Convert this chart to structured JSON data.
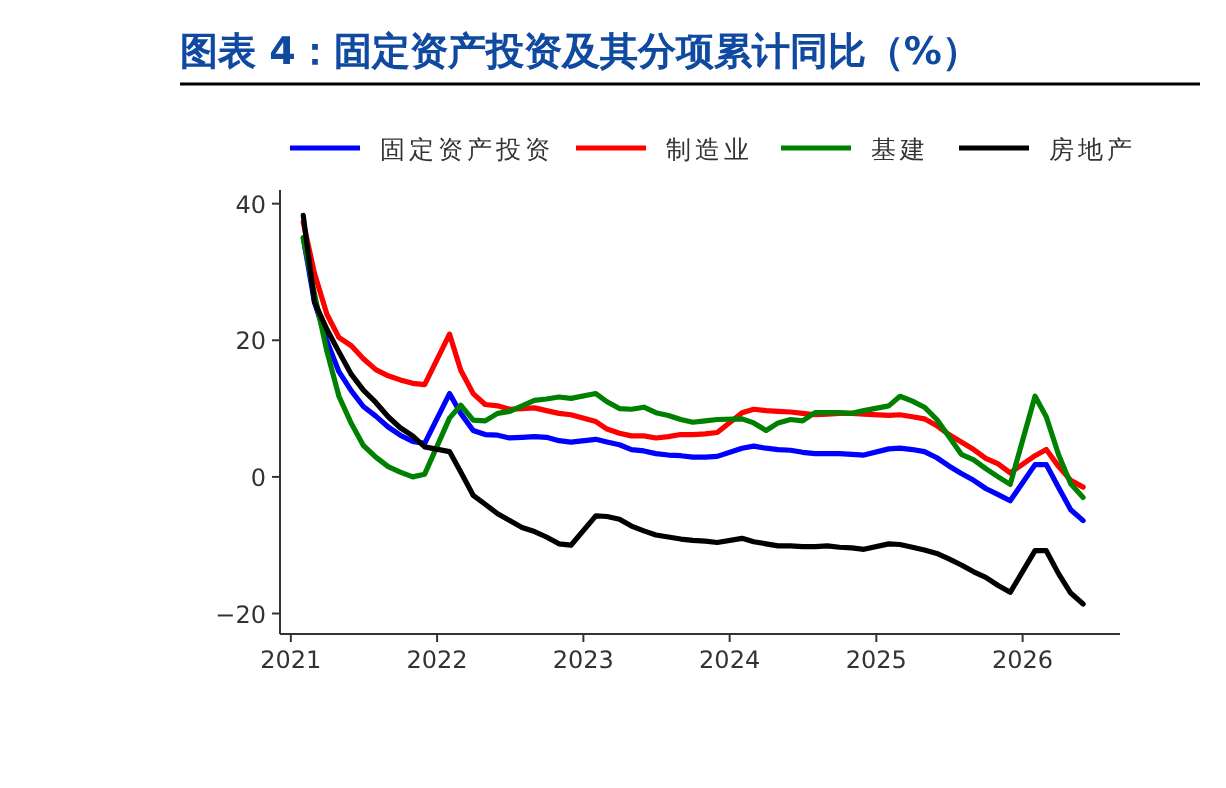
{
  "chart_data": {
    "type": "line",
    "title": "图表 4：固定资产投资及其分项累计同比（%）",
    "x": [
      "2021-02",
      "2021-03",
      "2021-04",
      "2021-05",
      "2021-06",
      "2021-07",
      "2021-08",
      "2021-09",
      "2021-10",
      "2021-11",
      "2021-12",
      "2022-02",
      "2022-03",
      "2022-04",
      "2022-05",
      "2022-06",
      "2022-07",
      "2022-08",
      "2022-09",
      "2022-10",
      "2022-11",
      "2022-12",
      "2023-02",
      "2023-03",
      "2023-04",
      "2023-05",
      "2023-06",
      "2023-07",
      "2023-08",
      "2023-09",
      "2023-10",
      "2023-11",
      "2023-12",
      "2024-02",
      "2024-03",
      "2024-04",
      "2024-05",
      "2024-06",
      "2024-07",
      "2024-08",
      "2024-09",
      "2024-10",
      "2024-11",
      "2024-12",
      "2025-02",
      "2025-03",
      "2025-04",
      "2025-05",
      "2025-06",
      "2025-07",
      "2025-08",
      "2025-09",
      "2025-10",
      "2025-11",
      "2025-12",
      "2026-02",
      "2026-03",
      "2026-04",
      "2026-05",
      "2026-06"
    ],
    "series": [
      {
        "name": "固定资产投资",
        "color": "#0000ff",
        "values": [
          35,
          25.6,
          19.9,
          15.4,
          12.6,
          10.3,
          8.9,
          7.3,
          6.1,
          5.2,
          4.9,
          12.2,
          9.3,
          6.8,
          6.2,
          6.1,
          5.7,
          5.8,
          5.9,
          5.8,
          5.3,
          5.1,
          5.5,
          5.1,
          4.7,
          4.0,
          3.8,
          3.4,
          3.2,
          3.1,
          2.9,
          2.9,
          3.0,
          4.2,
          4.5,
          4.2,
          4.0,
          3.9,
          3.6,
          3.4,
          3.4,
          3.4,
          3.3,
          3.2,
          4.1,
          4.2,
          4.0,
          3.7,
          2.8,
          1.6,
          0.5,
          -0.5,
          -1.7,
          -2.6,
          -3.5,
          1.8,
          1.8,
          -1.6,
          -4.8,
          -6.4
        ]
      },
      {
        "name": "制造业",
        "color": "#ff0000",
        "values": [
          37.3,
          29.8,
          23.8,
          20.4,
          19.2,
          17.3,
          15.7,
          14.8,
          14.2,
          13.7,
          13.5,
          20.9,
          15.6,
          12.2,
          10.6,
          10.4,
          9.9,
          10.0,
          10.1,
          9.7,
          9.3,
          9.1,
          8.1,
          7.0,
          6.4,
          6.0,
          6.0,
          5.7,
          5.9,
          6.2,
          6.2,
          6.3,
          6.5,
          9.4,
          9.9,
          9.7,
          9.6,
          9.5,
          9.3,
          9.1,
          9.2,
          9.3,
          9.3,
          9.2,
          9.0,
          9.1,
          8.8,
          8.5,
          7.5,
          6.2,
          5.1,
          4.0,
          2.7,
          1.9,
          0.6,
          3.1,
          4.0,
          1.5,
          -0.5,
          -1.5
        ]
      },
      {
        "name": "基建",
        "color": "#008000",
        "values": [
          35,
          26.8,
          18.4,
          11.8,
          7.8,
          4.6,
          2.9,
          1.5,
          0.7,
          0.0,
          0.4,
          8.6,
          10.5,
          8.3,
          8.2,
          9.3,
          9.6,
          10.4,
          11.2,
          11.4,
          11.7,
          11.5,
          12.2,
          11.0,
          10.0,
          9.9,
          10.2,
          9.4,
          9.0,
          8.4,
          8.0,
          8.2,
          8.4,
          8.5,
          7.9,
          6.8,
          7.9,
          8.4,
          8.2,
          9.4,
          9.4,
          9.4,
          9.3,
          9.7,
          10.4,
          11.8,
          11.1,
          10.2,
          8.4,
          5.9,
          3.3,
          2.5,
          1.2,
          0.0,
          -1.1,
          11.8,
          8.8,
          3.2,
          -1.0,
          -3.0
        ]
      },
      {
        "name": "房地产",
        "color": "#000000",
        "values": [
          38.3,
          25.6,
          21.6,
          18.3,
          15.0,
          12.7,
          10.9,
          8.8,
          7.2,
          6.0,
          4.4,
          3.7,
          0.7,
          -2.7,
          -4.0,
          -5.4,
          -6.4,
          -7.4,
          -8.0,
          -8.8,
          -9.8,
          -10.0,
          -5.7,
          -5.8,
          -6.2,
          -7.2,
          -7.9,
          -8.5,
          -8.8,
          -9.1,
          -9.3,
          -9.4,
          -9.6,
          -9.0,
          -9.5,
          -9.8,
          -10.1,
          -10.1,
          -10.2,
          -10.2,
          -10.1,
          -10.3,
          -10.4,
          -10.6,
          -9.8,
          -9.9,
          -10.3,
          -10.7,
          -11.2,
          -12.0,
          -12.9,
          -13.9,
          -14.7,
          -15.9,
          -16.9,
          -10.8,
          -10.8,
          -14.2,
          -17.0,
          -18.6
        ]
      }
    ],
    "xlim": [
      "2020-12-05",
      "2026-09-01"
    ],
    "xticks": [
      {
        "value": "2021",
        "label": "2021"
      },
      {
        "value": "2022",
        "label": "2022"
      },
      {
        "value": "2023",
        "label": "2023"
      },
      {
        "value": "2024",
        "label": "2024"
      },
      {
        "value": "2025",
        "label": "2025"
      },
      {
        "value": "2026",
        "label": "2026"
      }
    ],
    "ylim": [
      -23,
      42
    ],
    "yticks": [
      -20,
      0,
      20,
      40
    ],
    "grid": false,
    "legend": "top",
    "marker": "none",
    "line_style": "solid"
  }
}
